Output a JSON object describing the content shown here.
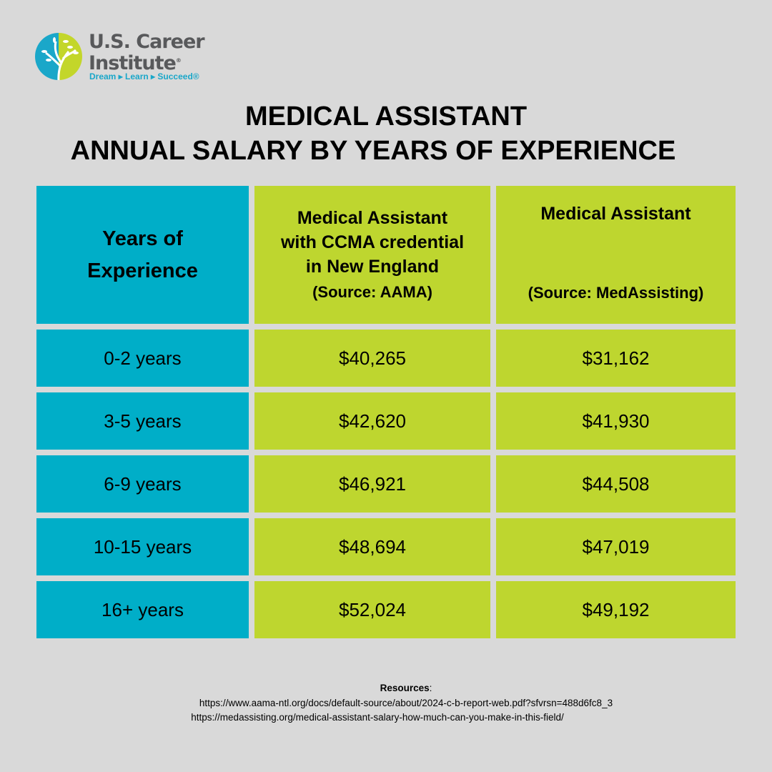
{
  "logo": {
    "line1": "U.S. Career",
    "line2": "Institute",
    "registered": "®",
    "tagline": "Dream ▸ Learn ▸ Succeed®"
  },
  "title": {
    "line1": "MEDICAL ASSISTANT",
    "line2": "ANNUAL SALARY BY YEARS OF EXPERIENCE"
  },
  "table": {
    "headers": [
      {
        "lines": [
          "Years of",
          "Experience"
        ]
      },
      {
        "lines": [
          "Medical Assistant",
          "with CCMA credential",
          "in New England"
        ],
        "source": "(Source: AAMA)"
      },
      {
        "lines": [
          "Medical Assistant"
        ],
        "source": "(Source: MedAssisting)"
      }
    ],
    "rows": [
      [
        "0-2 years",
        "$40,265",
        "$31,162"
      ],
      [
        "3-5 years",
        "$42,620",
        "$41,930"
      ],
      [
        "6-9 years",
        "$46,921",
        "$44,508"
      ],
      [
        "10-15 years",
        "$48,694",
        "$47,019"
      ],
      [
        "16+ years",
        "$52,024",
        "$49,192"
      ]
    ]
  },
  "resources": {
    "label": "Resources",
    "links": [
      "https://www.aama-ntl.org/docs/default-source/about/2024-c-b-report-web.pdf?sfvrsn=488d6fc8_3",
      "https://medassisting.org/medical-assistant-salary-how-much-can-you-make-in-this-field/"
    ]
  },
  "colors": {
    "background": "#d9d9d9",
    "teal": "#00aec8",
    "lime": "#bed62f",
    "brand_gray": "#58595b"
  }
}
